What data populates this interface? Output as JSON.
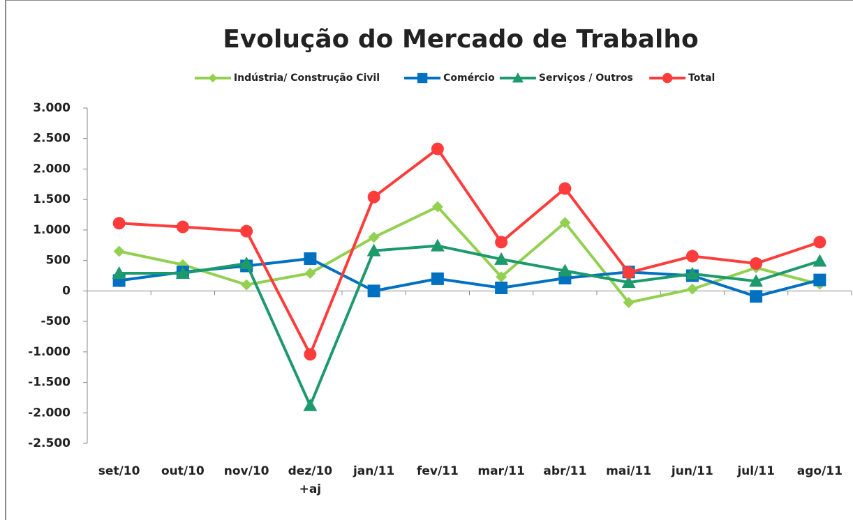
{
  "chart_data": {
    "type": "line",
    "title": "Evolução do Mercado de Trabalho",
    "categories": [
      "set/10",
      "out/10",
      "nov/10",
      "dez/10\n+aj",
      "jan/11",
      "fev/11",
      "mar/11",
      "abr/11",
      "mai/11",
      "jun/11",
      "jul/11",
      "ago/11"
    ],
    "series": [
      {
        "name": "Indústria/ Construção Civil",
        "color": "#92d050",
        "marker": "diamond",
        "values": [
          650,
          430,
          100,
          290,
          880,
          1380,
          230,
          1120,
          -190,
          30,
          380,
          110
        ]
      },
      {
        "name": "Comércio",
        "color": "#0070c0",
        "marker": "square",
        "values": [
          170,
          310,
          410,
          530,
          0,
          200,
          50,
          210,
          310,
          250,
          -90,
          180
        ]
      },
      {
        "name": "Serviços / Outros",
        "color": "#1c9a6c",
        "marker": "triangle",
        "values": [
          290,
          290,
          450,
          -1880,
          660,
          740,
          520,
          330,
          140,
          280,
          160,
          490
        ]
      },
      {
        "name": "Total",
        "color": "#ff3c3c",
        "marker": "circle",
        "values": [
          1110,
          1050,
          980,
          -1040,
          1540,
          2330,
          800,
          1680,
          300,
          570,
          450,
          800
        ]
      }
    ],
    "ylim": [
      -2500,
      3000
    ],
    "yticks": [
      {
        "value": -2500,
        "label": "-2.500"
      },
      {
        "value": -2000,
        "label": "-2.000"
      },
      {
        "value": -1500,
        "label": "-1.500"
      },
      {
        "value": -1000,
        "label": "-1.000"
      },
      -500,
      0,
      500,
      {
        "value": 1000,
        "label": "1.000"
      },
      {
        "value": 1500,
        "label": "1.500"
      },
      {
        "value": 2000,
        "label": "2.000"
      },
      {
        "value": 2500,
        "label": "2.500"
      },
      {
        "value": 3000,
        "label": "3.000"
      }
    ],
    "legend": "top"
  }
}
